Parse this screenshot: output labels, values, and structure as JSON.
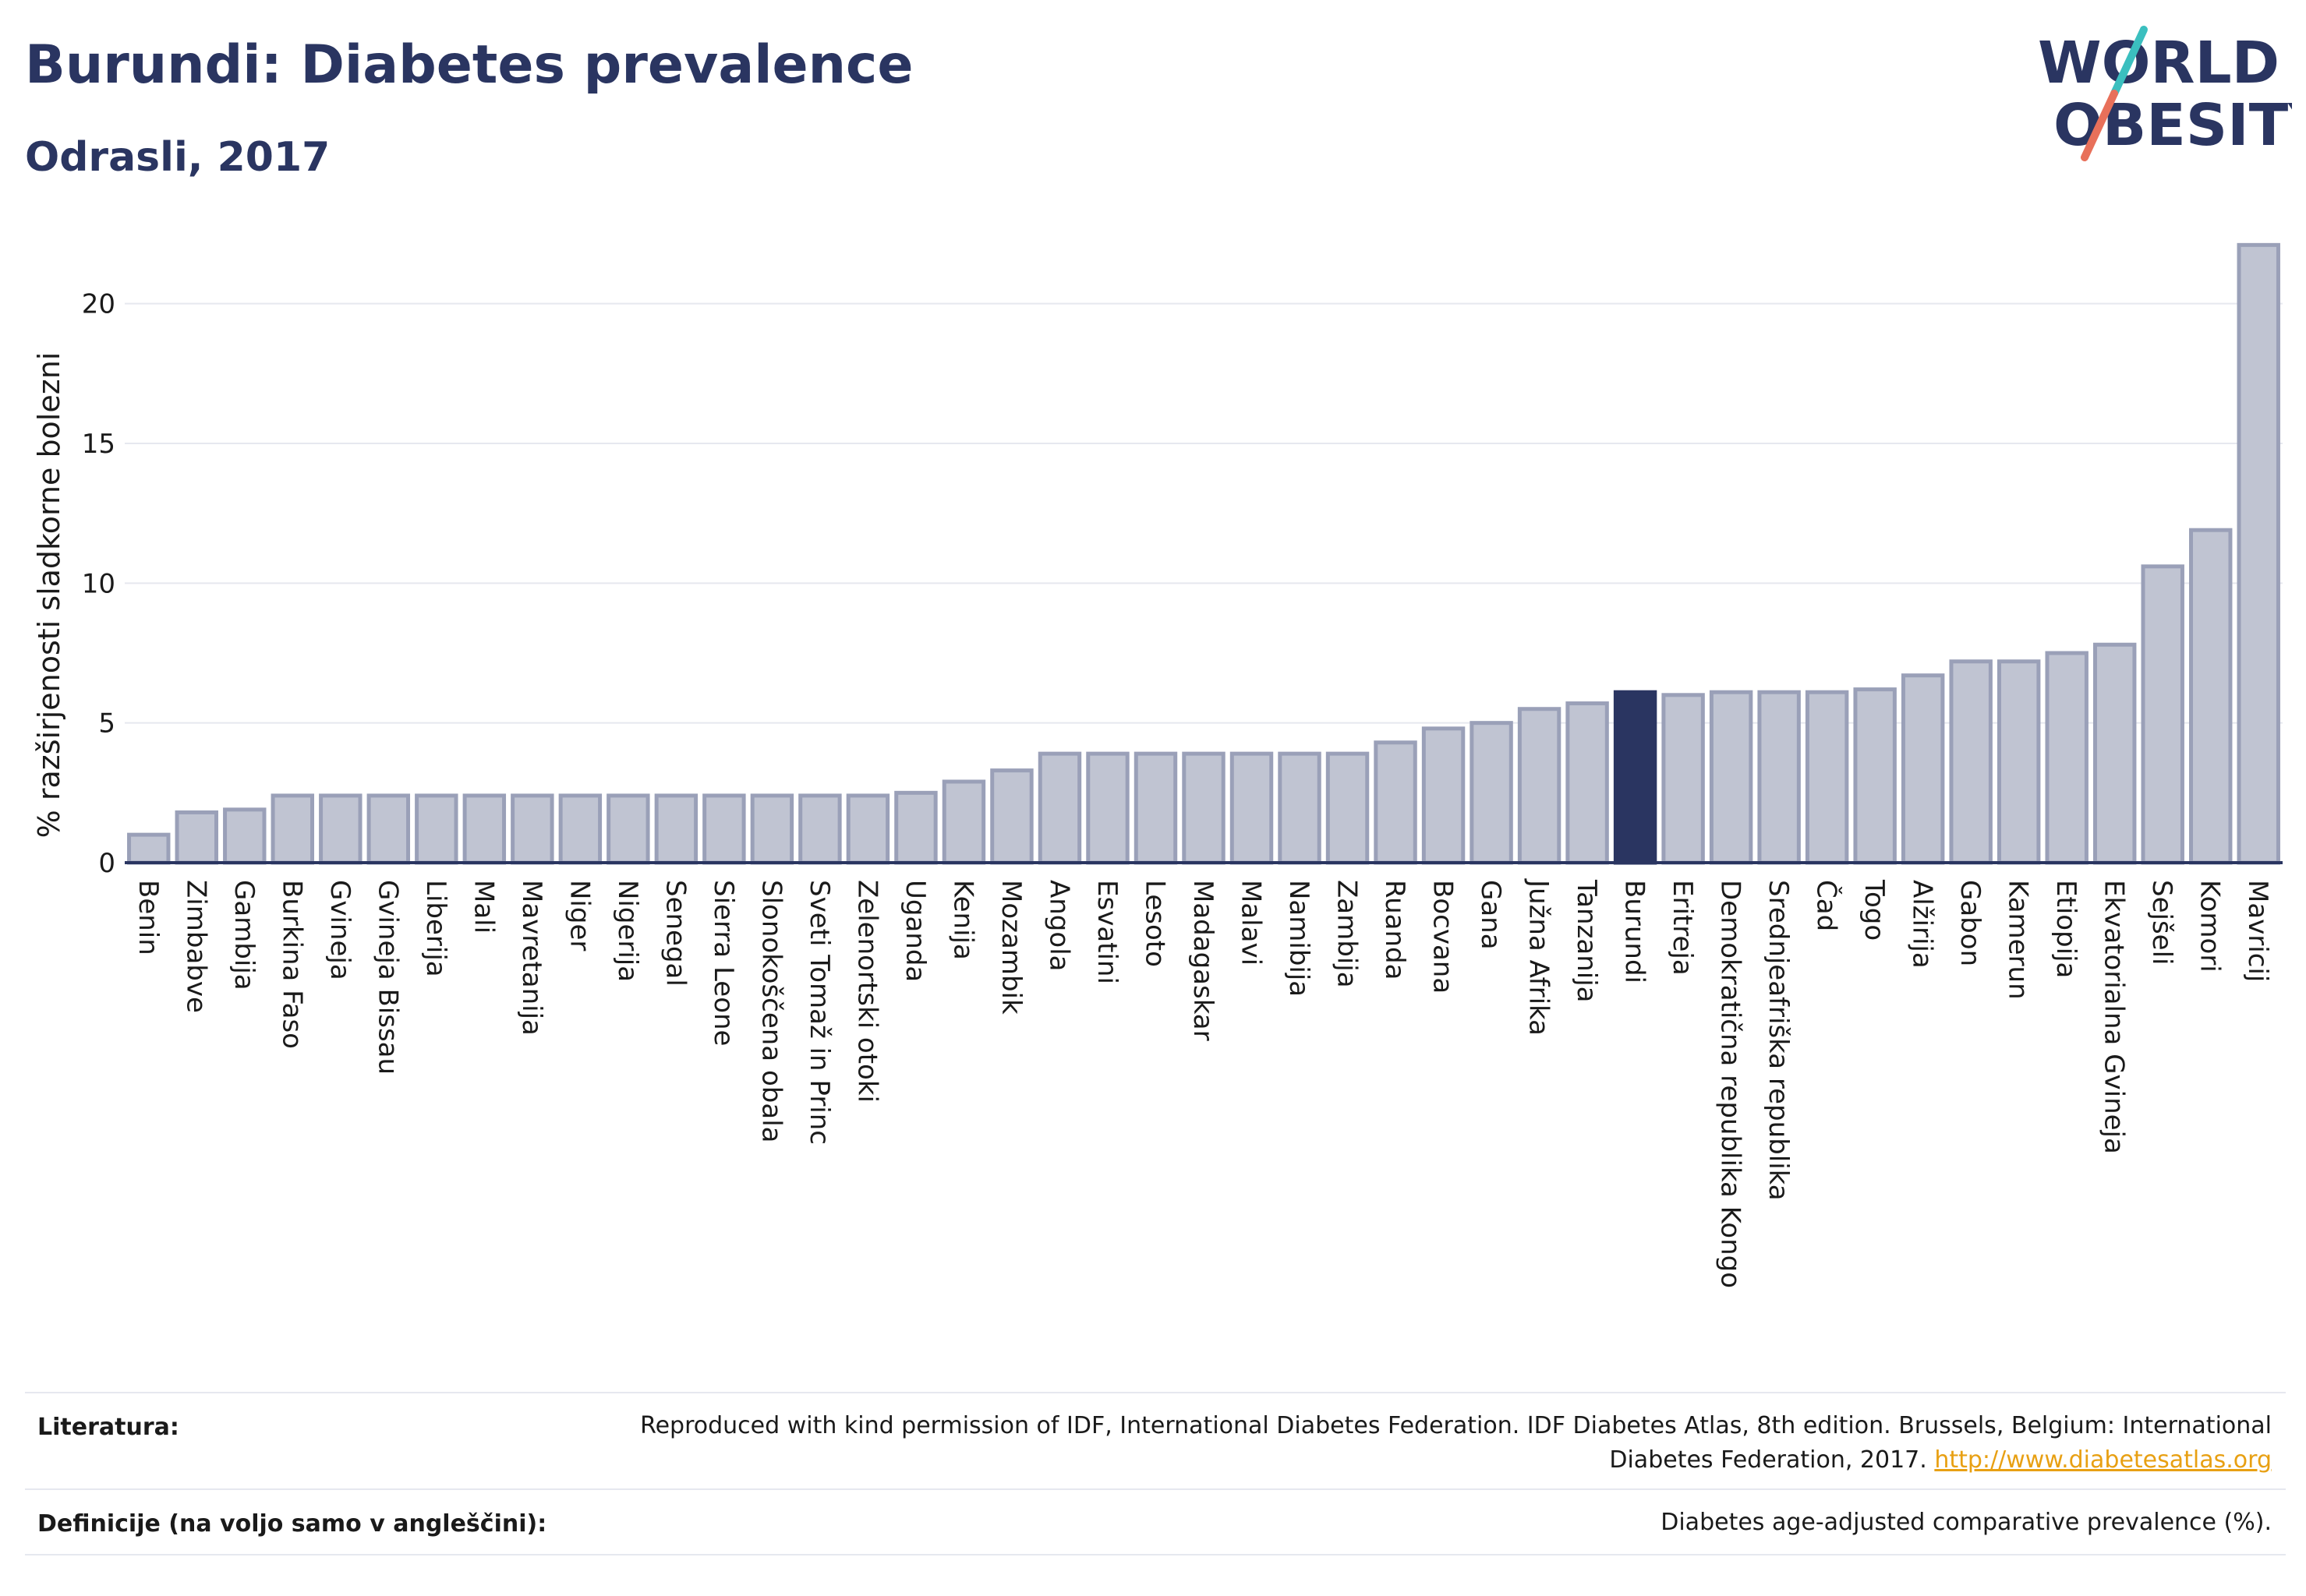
{
  "header": {
    "title": "Burundi: Diabetes prevalence",
    "subtitle": "Odrasli, 2017"
  },
  "logo": {
    "line1": "WORLD",
    "line2": "OBESITY",
    "slash_colors": [
      "#3bbfbf",
      "#e8705a"
    ]
  },
  "colors": {
    "bar": "#c0c4d2",
    "bar_stroke": "#9aa0b8",
    "highlight": "#2a3561",
    "grid": "#e6e8ef",
    "axis": "#2a3561"
  },
  "chart_data": {
    "type": "bar",
    "ylabel": "% razširjenosti sladkorne bolezni",
    "ylim": [
      0,
      22.5
    ],
    "yticks": [
      0,
      5,
      10,
      15,
      20
    ],
    "highlight": "Burundi",
    "grid": true,
    "categories": [
      "Benin",
      "Zimbabve",
      "Gambija",
      "Burkina Faso",
      "Gvineja",
      "Gvineja Bissau",
      "Liberija",
      "Mali",
      "Mavretanija",
      "Niger",
      "Nigerija",
      "Senegal",
      "Sierra Leone",
      "Slonokoščena obala",
      "Sveti Tomaž in Princ",
      "Zelenortski otoki",
      "Uganda",
      "Kenija",
      "Mozambik",
      "Angola",
      "Esvatini",
      "Lesoto",
      "Madagaskar",
      "Malavi",
      "Namibija",
      "Zambija",
      "Ruanda",
      "Bocvana",
      "Gana",
      "Južna Afrika",
      "Tanzanija",
      "Burundi",
      "Eritreja",
      "Demokratična republika Kongo",
      "Srednjeafriška republika",
      "Čad",
      "Togo",
      "Alžirija",
      "Gabon",
      "Kamerun",
      "Etiopija",
      "Ekvatorialna Gvineja",
      "Sejšeli",
      "Komori",
      "Mavricij"
    ],
    "values": [
      1.0,
      1.8,
      1.9,
      2.4,
      2.4,
      2.4,
      2.4,
      2.4,
      2.4,
      2.4,
      2.4,
      2.4,
      2.4,
      2.4,
      2.4,
      2.4,
      2.5,
      2.9,
      3.3,
      3.9,
      3.9,
      3.9,
      3.9,
      3.9,
      3.9,
      3.9,
      4.3,
      4.8,
      5.0,
      5.5,
      5.7,
      6.1,
      6.0,
      6.1,
      6.1,
      6.1,
      6.2,
      6.7,
      7.2,
      7.2,
      7.5,
      7.8,
      10.6,
      11.9,
      22.1
    ]
  },
  "footer": {
    "literature_label": "Literatura:",
    "literature_text": "Reproduced with kind permission of IDF, International Diabetes Federation. IDF Diabetes Atlas, 8th edition. Brussels, Belgium: International Diabetes Federation, 2017.",
    "literature_link": "http://www.diabetesatlas.org",
    "definitions_label": "Definicije (na voljo samo v angleščini):",
    "definitions_text": "Diabetes age-adjusted comparative prevalence (%)."
  }
}
